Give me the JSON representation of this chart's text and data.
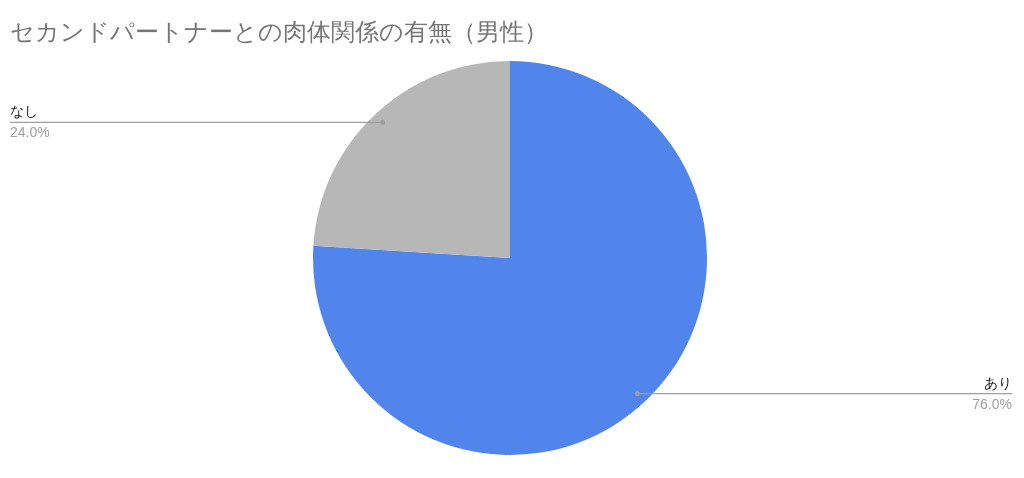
{
  "chart_data": {
    "type": "pie",
    "title": "セカンドパートナーとの肉体関係の有無（男性）",
    "categories": [
      "あり",
      "なし"
    ],
    "values": [
      76.0,
      24.0
    ],
    "colors": [
      "#5185ec",
      "#b7b7b7"
    ],
    "value_labels": [
      "76.0%",
      "24.0%"
    ]
  }
}
